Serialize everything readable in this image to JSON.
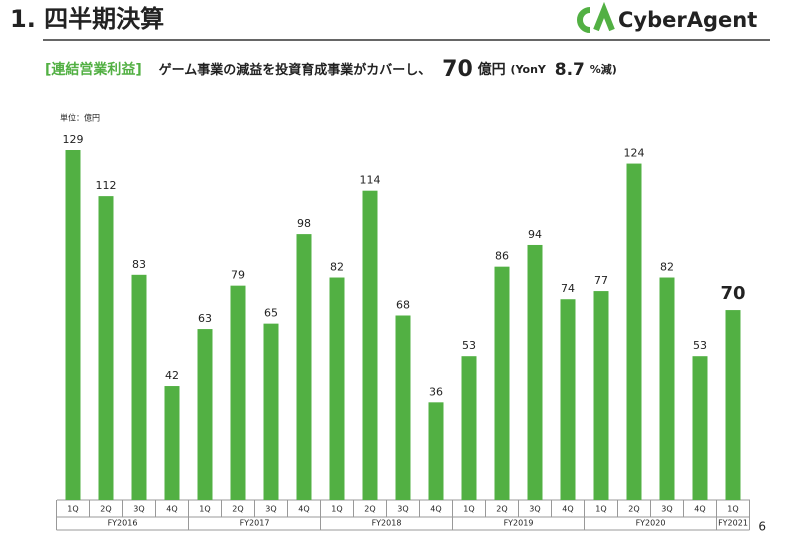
{
  "header": {
    "title": "1. 四半期決算",
    "logo": "CyberAgent"
  },
  "subtitle": {
    "tag": "[連結営業利益]",
    "text": "ゲーム事業の減益を投資育成事業がカバーし、",
    "amount": "70",
    "unit": "億円",
    "yoy_open": "(YonY",
    "yoy_value": "8.7",
    "yoy_close": "%減)"
  },
  "chart_data": {
    "type": "bar",
    "unit_label": "単位：億円",
    "color": "#52b043",
    "categories": [
      "1Q",
      "2Q",
      "3Q",
      "4Q",
      "1Q",
      "2Q",
      "3Q",
      "4Q",
      "1Q",
      "2Q",
      "3Q",
      "4Q",
      "1Q",
      "2Q",
      "3Q",
      "4Q",
      "1Q",
      "2Q",
      "3Q",
      "4Q",
      "1Q"
    ],
    "groups": [
      "FY2016",
      "FY2017",
      "FY2018",
      "FY2019",
      "FY2020",
      "FY2021"
    ],
    "values": [
      129,
      112,
      83,
      42,
      63,
      79,
      65,
      98,
      82,
      114,
      68,
      36,
      53,
      86,
      94,
      74,
      77,
      124,
      82,
      53,
      70
    ]
  },
  "page_number": "6"
}
